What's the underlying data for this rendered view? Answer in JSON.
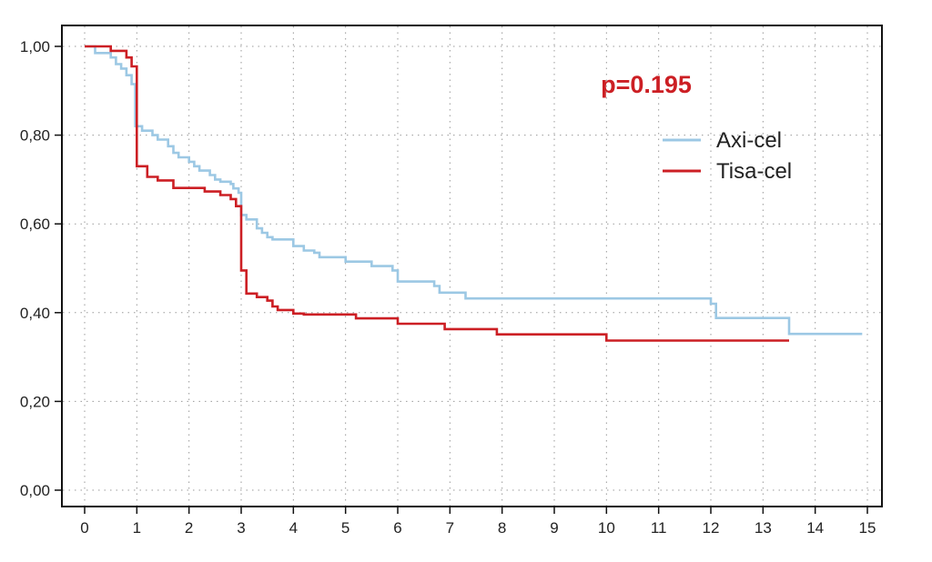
{
  "chart_data": {
    "type": "line",
    "title": "",
    "xlabel": "",
    "ylabel": "",
    "xlim": [
      0,
      15
    ],
    "ylim": [
      0,
      1
    ],
    "grid": true,
    "x_ticks": [
      "0",
      "1",
      "2",
      "3",
      "4",
      "5",
      "6",
      "7",
      "8",
      "9",
      "10",
      "11",
      "12",
      "13",
      "14",
      "15"
    ],
    "y_ticks": [
      "0,00",
      "0,20",
      "0,40",
      "0,60",
      "0,80",
      "1,00"
    ],
    "annotation": "p=0.195",
    "legend_position": "right",
    "series": [
      {
        "name": "Axi-cel",
        "color": "#9cc8e4",
        "step": true,
        "points": [
          [
            0,
            1.0
          ],
          [
            0.2,
            0.985
          ],
          [
            0.5,
            0.975
          ],
          [
            0.6,
            0.96
          ],
          [
            0.7,
            0.95
          ],
          [
            0.8,
            0.935
          ],
          [
            0.9,
            0.915
          ],
          [
            0.97,
            0.82
          ],
          [
            1.1,
            0.81
          ],
          [
            1.3,
            0.8
          ],
          [
            1.4,
            0.79
          ],
          [
            1.6,
            0.775
          ],
          [
            1.7,
            0.76
          ],
          [
            1.8,
            0.75
          ],
          [
            2.0,
            0.74
          ],
          [
            2.1,
            0.73
          ],
          [
            2.2,
            0.72
          ],
          [
            2.4,
            0.71
          ],
          [
            2.5,
            0.7
          ],
          [
            2.6,
            0.695
          ],
          [
            2.8,
            0.69
          ],
          [
            2.85,
            0.68
          ],
          [
            2.95,
            0.67
          ],
          [
            3.0,
            0.62
          ],
          [
            3.1,
            0.61
          ],
          [
            3.3,
            0.59
          ],
          [
            3.4,
            0.58
          ],
          [
            3.5,
            0.57
          ],
          [
            3.6,
            0.565
          ],
          [
            4.0,
            0.55
          ],
          [
            4.2,
            0.54
          ],
          [
            4.4,
            0.535
          ],
          [
            4.5,
            0.525
          ],
          [
            4.7,
            0.525
          ],
          [
            5.0,
            0.515
          ],
          [
            5.4,
            0.515
          ],
          [
            5.5,
            0.505
          ],
          [
            5.9,
            0.495
          ],
          [
            6.0,
            0.47
          ],
          [
            6.7,
            0.46
          ],
          [
            6.8,
            0.445
          ],
          [
            7.3,
            0.432
          ],
          [
            12.0,
            0.42
          ],
          [
            12.1,
            0.388
          ],
          [
            13.5,
            0.352
          ],
          [
            14.9,
            0.352
          ]
        ]
      },
      {
        "name": "Tisa-cel",
        "color": "#cc1f24",
        "step": true,
        "points": [
          [
            0,
            1.0
          ],
          [
            0.5,
            0.99
          ],
          [
            0.8,
            0.975
          ],
          [
            0.9,
            0.955
          ],
          [
            1.0,
            0.915
          ],
          [
            1.0,
            0.82
          ],
          [
            1.0,
            0.73
          ],
          [
            1.2,
            0.706
          ],
          [
            1.4,
            0.698
          ],
          [
            1.7,
            0.681
          ],
          [
            2.3,
            0.673
          ],
          [
            2.6,
            0.665
          ],
          [
            2.8,
            0.656
          ],
          [
            2.9,
            0.64
          ],
          [
            3.0,
            0.615
          ],
          [
            3.0,
            0.495
          ],
          [
            3.1,
            0.443
          ],
          [
            3.3,
            0.435
          ],
          [
            3.5,
            0.427
          ],
          [
            3.6,
            0.414
          ],
          [
            3.7,
            0.406
          ],
          [
            4.0,
            0.398
          ],
          [
            4.2,
            0.396
          ],
          [
            5.2,
            0.387
          ],
          [
            6.0,
            0.375
          ],
          [
            6.9,
            0.363
          ],
          [
            7.9,
            0.351
          ],
          [
            10.0,
            0.337
          ],
          [
            13.5,
            0.337
          ]
        ]
      }
    ]
  }
}
